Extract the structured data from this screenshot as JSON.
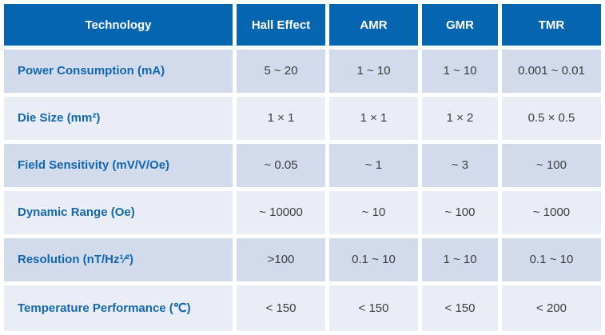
{
  "colors": {
    "header_bg": "#0565b0",
    "header_text": "#ffffff",
    "label_text": "#1366ae",
    "value_text": "#3d3d3d",
    "row_odd_bg": "#d2dbec",
    "row_even_bg": "#e9edf6",
    "gap": "#ffffff"
  },
  "table": {
    "columns": [
      {
        "label": "Technology"
      },
      {
        "label": "Hall Effect"
      },
      {
        "label": "AMR"
      },
      {
        "label": "GMR"
      },
      {
        "label": "TMR"
      }
    ],
    "rows": [
      {
        "label": "Power Consumption (mA)",
        "values": [
          "5 ~ 20",
          "1 ~ 10",
          "1 ~ 10",
          "0.001 ~ 0.01"
        ]
      },
      {
        "label": "Die Size (mm²)",
        "values": [
          "1 × 1",
          "1 × 1",
          "1 × 2",
          "0.5 × 0.5"
        ]
      },
      {
        "label": "Field Sensitivity (mV/V/Oe)",
        "values": [
          "~ 0.05",
          "~ 1",
          "~ 3",
          "~ 100"
        ]
      },
      {
        "label": "Dynamic Range (Oe)",
        "values": [
          "~ 10000",
          "~ 10",
          "~ 100",
          "~ 1000"
        ]
      },
      {
        "label": "Resolution (nT/Hz¹⁄²)",
        "values": [
          ">100",
          "0.1 ~ 10",
          "1 ~ 10",
          "0.1 ~ 10"
        ]
      },
      {
        "label": "Temperature Performance (℃)",
        "values": [
          "< 150",
          "< 150",
          "< 150",
          "< 200"
        ]
      }
    ]
  },
  "chart_data": {
    "type": "table",
    "title": "Magnetic sensor technology comparison",
    "columns": [
      "Technology",
      "Hall Effect",
      "AMR",
      "GMR",
      "TMR"
    ],
    "rows": [
      [
        "Power Consumption (mA)",
        "5 ~ 20",
        "1 ~ 10",
        "1 ~ 10",
        "0.001 ~ 0.01"
      ],
      [
        "Die Size (mm²)",
        "1 × 1",
        "1 × 1",
        "1 × 2",
        "0.5 × 0.5"
      ],
      [
        "Field Sensitivity (mV/V/Oe)",
        "~ 0.05",
        "~ 1",
        "~ 3",
        "~ 100"
      ],
      [
        "Dynamic Range (Oe)",
        "~ 10000",
        "~ 10",
        "~ 100",
        "~ 1000"
      ],
      [
        "Resolution (nT/Hz¹⁄²)",
        ">100",
        "0.1 ~ 10",
        "1 ~ 10",
        "0.1 ~ 10"
      ],
      [
        "Temperature Performance (℃)",
        "< 150",
        "< 150",
        "< 150",
        "< 200"
      ]
    ],
    "layout_hints": {
      "header_style": "dark-blue band, white bold centered text",
      "row_striping": "odd rows #d2dbec, even rows #e9edf6, 5px white gutters between all cells",
      "first_column": "left-aligned bold blue labels",
      "value_columns": "centered dark-gray values"
    }
  }
}
